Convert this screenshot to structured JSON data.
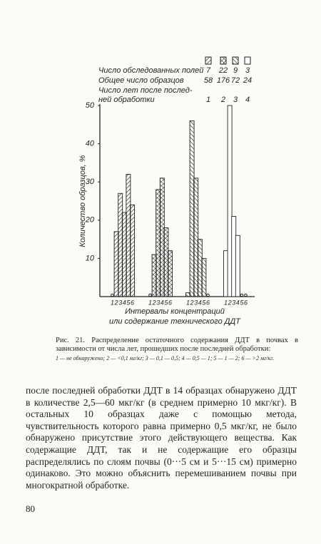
{
  "chart_data": {
    "type": "bar",
    "categories": [
      "1",
      "2",
      "3",
      "4",
      "5",
      "6"
    ],
    "series": [
      {
        "name": "1",
        "fields": 7,
        "samples": 58,
        "pattern": "hatch-right",
        "color": "#222",
        "values": [
          0,
          17,
          27,
          22,
          32,
          24
        ]
      },
      {
        "name": "2",
        "fields": 22,
        "samples": 176,
        "pattern": "crosshatch",
        "color": "#222",
        "values": [
          0,
          11,
          28,
          31,
          18,
          12
        ]
      },
      {
        "name": "3",
        "fields": 9,
        "samples": 72,
        "pattern": "hatch-left",
        "color": "#222",
        "values": [
          1,
          46,
          31,
          15,
          10,
          0
        ]
      },
      {
        "name": "4",
        "fields": 3,
        "samples": 24,
        "pattern": "none",
        "color": "#222",
        "values": [
          12,
          50,
          21,
          16,
          0,
          0
        ]
      }
    ],
    "ylim": [
      0,
      50
    ],
    "yticks": [
      10,
      20,
      30,
      40,
      50
    ],
    "ylabel": "Количество образцов, %",
    "xlabel": [
      "Интервалы концентраций",
      "или содержание технического ДДТ"
    ],
    "legend": {
      "fields_label": "Число обследованных полей",
      "samples_label": "Общее число образцов",
      "years_label": [
        "Число лет после послед-",
        "ней обработки"
      ]
    }
  },
  "caption": {
    "title": "Рис. 21. Распределение остаточного содержания ДДТ в почвах в зависимости от числа лет, прошедших после последней обработки:",
    "key": "1 — не обнаружено; 2 — <0,1 мг/кг; 3 — 0,1 — 0,5; 4 — 0,5 — 1; 5 — 1 — 2; 6 — >2 мг/кг."
  },
  "body": "после последней обработки ДДТ в 14 образцах обнаружено ДДТ в количестве 2,5—60 мкг/кг (в среднем примерно 10 мкг/кг). В остальных 10 образцах даже с помощью метода, чувствительность которого равна примерно 0,5 мкг/кг, не было обнаружено присутствие этого действующего вещества. Как содержащие ДДТ, так и не содержащие его образцы распределялись по слоям почвы (0···5 см и 5···15 см) примерно одинаково. Это можно объяснить перемешиванием почвы при многократной обработке.",
  "page_number": "80"
}
